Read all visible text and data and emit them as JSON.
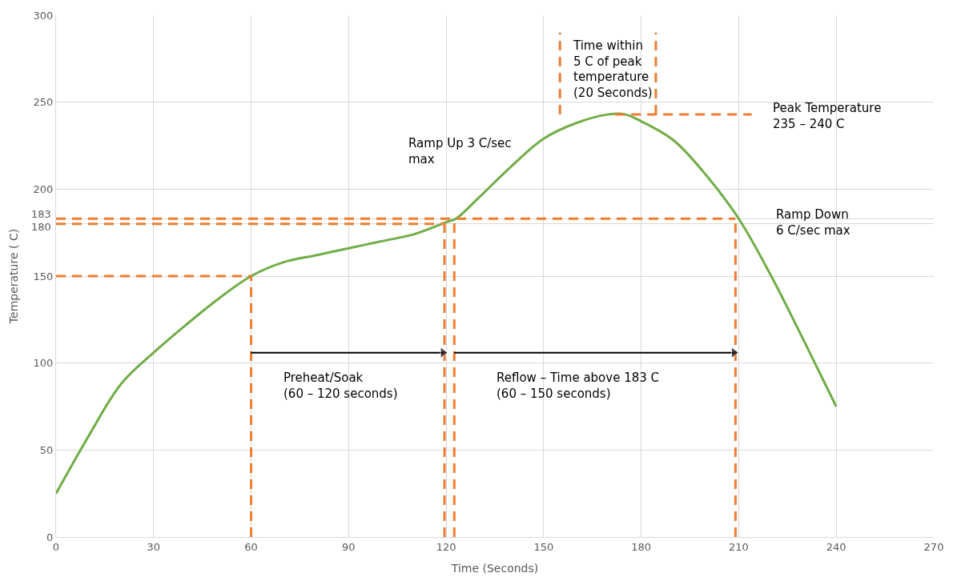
{
  "chart_data": {
    "type": "line",
    "xlabel": "Time (Seconds)",
    "ylabel": "Temperature ( C)",
    "xlim": [
      0,
      270
    ],
    "xticks": [
      0,
      30,
      60,
      90,
      120,
      150,
      180,
      210,
      240,
      270
    ],
    "ylim": [
      0,
      300
    ],
    "yticks": [
      0,
      50,
      100,
      150,
      180,
      183,
      200,
      250,
      300
    ],
    "grid": true,
    "series": [
      {
        "color": "#70ad47",
        "x": [
          0,
          10,
          20,
          30,
          40,
          50,
          60,
          70,
          80,
          90,
          100,
          110,
          120,
          123,
          130,
          140,
          150,
          160,
          170,
          175,
          180,
          190,
          200,
          210,
          220,
          230,
          240
        ],
        "values": [
          25,
          58,
          88,
          106,
          122,
          137,
          150,
          158,
          162,
          166,
          170,
          174,
          181,
          183,
          195,
          213,
          229,
          238,
          243,
          243,
          239,
          228,
          208,
          183,
          150,
          113,
          75
        ]
      },
      {
        "color": "#ed7d31",
        "line_style": "dashed",
        "x": [
          0,
          60
        ],
        "values": [
          150,
          150
        ]
      },
      {
        "color": "#ed7d31",
        "line_style": "dashed",
        "x": [
          0,
          119.5
        ],
        "values": [
          180,
          180
        ]
      },
      {
        "color": "#ed7d31",
        "line_style": "dashed",
        "x": [
          0,
          209
        ],
        "values": [
          183,
          183
        ]
      },
      {
        "color": "#ed7d31",
        "line_style": "dashed",
        "x": [
          60,
          60
        ],
        "values": [
          0,
          150
        ]
      },
      {
        "color": "#ed7d31",
        "line_style": "dashed",
        "x": [
          119.5,
          119.5
        ],
        "values": [
          0,
          180
        ]
      },
      {
        "color": "#ed7d31",
        "line_style": "dashed",
        "x": [
          122.5,
          122.5
        ],
        "values": [
          0,
          183
        ]
      },
      {
        "color": "#ed7d31",
        "line_style": "dashed",
        "x": [
          209,
          209
        ],
        "values": [
          0,
          183
        ]
      },
      {
        "color": "#ed7d31",
        "line_style": "dashed",
        "x": [
          155,
          155
        ],
        "values": [
          243,
          290
        ]
      },
      {
        "color": "#ed7d31",
        "line_style": "dashed",
        "x": [
          184.5,
          184.5
        ],
        "values": [
          243,
          290
        ]
      },
      {
        "color": "#ed7d31",
        "line_style": "dashed",
        "x": [
          172,
          214
        ],
        "values": [
          243,
          243
        ]
      },
      {
        "color": "#000000",
        "marker": "triangle",
        "x": [
          60,
          119
        ],
        "values": [
          106,
          106
        ]
      },
      {
        "color": "#000000",
        "marker": "triangle",
        "x": [
          122.5,
          208.5
        ],
        "values": [
          106,
          106
        ]
      }
    ],
    "annotations": [
      "Ramp Up 3 C/sec\nmax",
      "Preheat/Soak\n(60 – 120 seconds)",
      "Reflow – Time above 183 C\n(60 – 150 seconds)",
      "Peak Temperature\n235 – 240 C",
      "Ramp Down\n6 C/sec max",
      "Time within\n5 C of peak\ntemperature\n(20 Seconds)"
    ]
  }
}
